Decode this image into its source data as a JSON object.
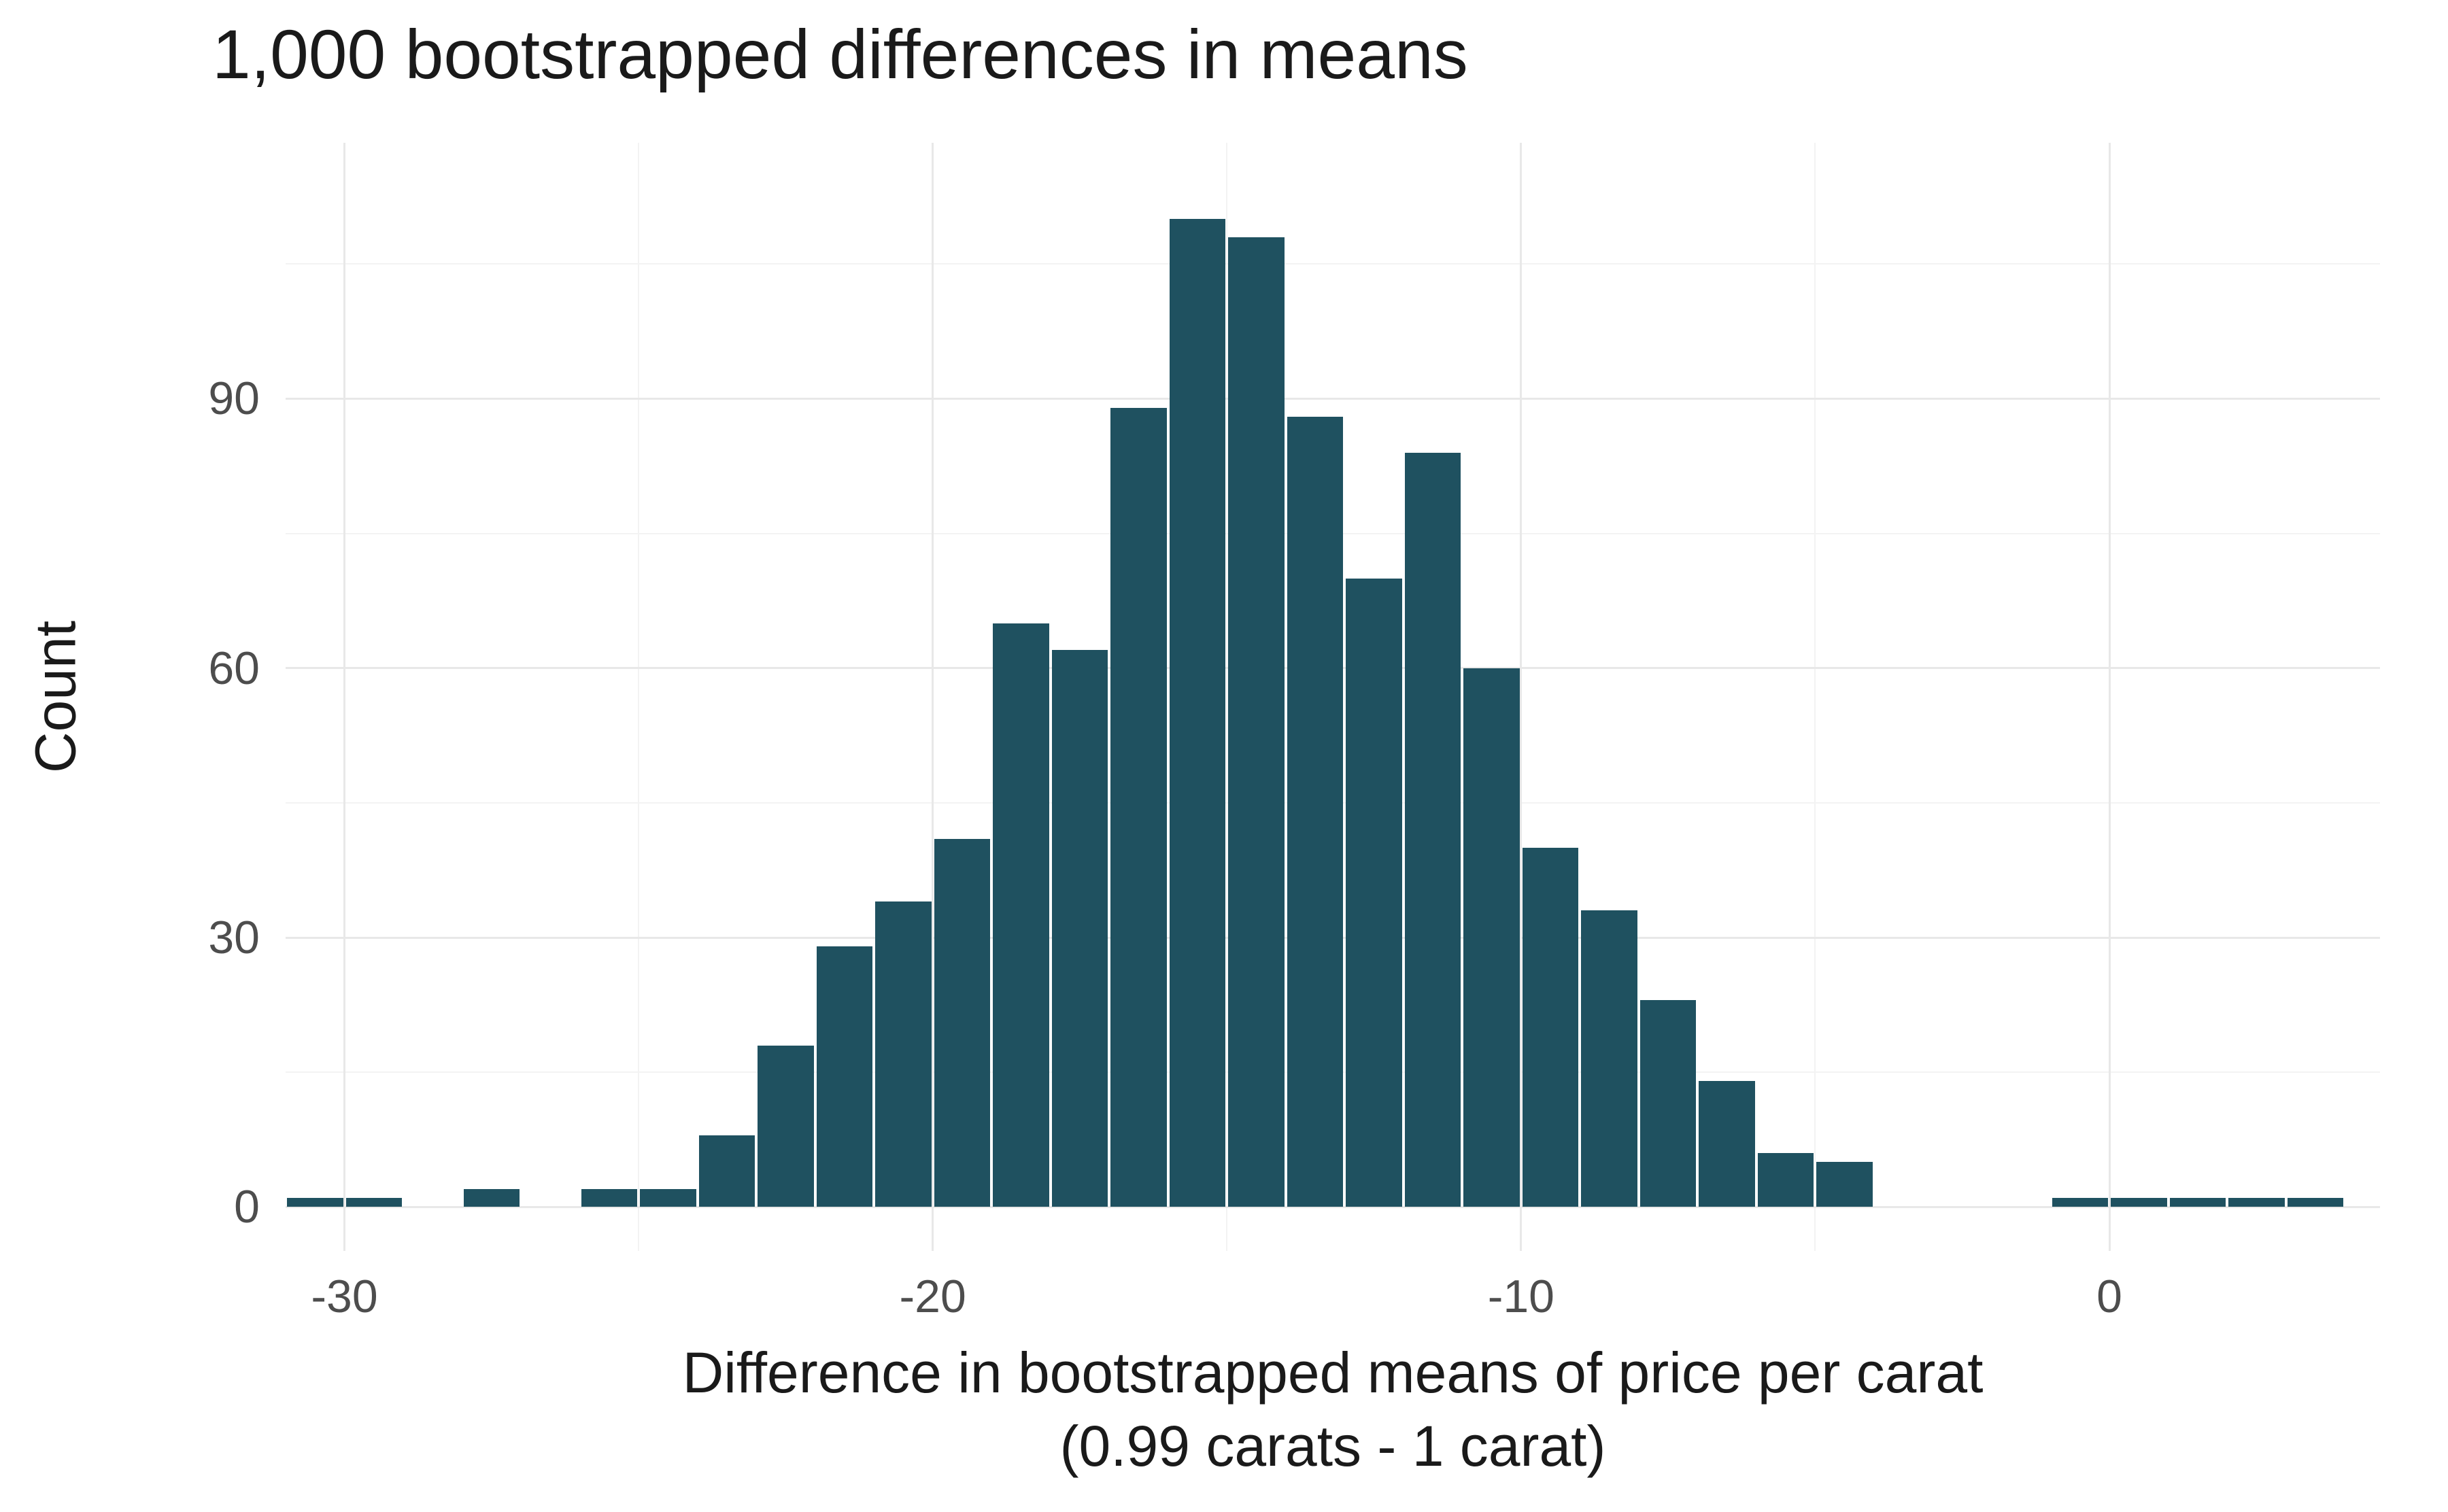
{
  "chart_data": {
    "type": "bar",
    "subtype": "histogram",
    "title": "1,000 bootstrapped differences in means",
    "xlabel_line1": "Difference in bootstrapped means of price per carat",
    "xlabel_line2": "(0.99 carats - 1 carat)",
    "ylabel": "Count",
    "total_samples": "1,000",
    "bar_color": "#1f5160",
    "grid_major_color": "#e8e8e8",
    "grid_minor_color": "#f3f3f3",
    "background_color": "#ffffff",
    "legend": "none",
    "grid": "on",
    "bin_width": 1,
    "xlim": [
      -31.0,
      4.6
    ],
    "ylim": [
      -4.9,
      118.5
    ],
    "x_ticks": [
      -30,
      -20,
      -10,
      0
    ],
    "x_minor_ticks": [
      -25,
      -15,
      -5
    ],
    "y_ticks": [
      0,
      30,
      60,
      90
    ],
    "y_minor_ticks": [
      15,
      45,
      75,
      105
    ],
    "bars": [
      {
        "x": -30.5,
        "count": 1
      },
      {
        "x": -29.5,
        "count": 1
      },
      {
        "x": -27.5,
        "count": 2
      },
      {
        "x": -25.5,
        "count": 2
      },
      {
        "x": -24.5,
        "count": 2
      },
      {
        "x": -23.5,
        "count": 8
      },
      {
        "x": -22.5,
        "count": 18
      },
      {
        "x": -21.5,
        "count": 29
      },
      {
        "x": -20.5,
        "count": 34
      },
      {
        "x": -19.5,
        "count": 41
      },
      {
        "x": -18.5,
        "count": 65
      },
      {
        "x": -17.5,
        "count": 62
      },
      {
        "x": -16.5,
        "count": 89
      },
      {
        "x": -15.5,
        "count": 110
      },
      {
        "x": -14.5,
        "count": 108
      },
      {
        "x": -13.5,
        "count": 88
      },
      {
        "x": -12.5,
        "count": 70
      },
      {
        "x": -11.5,
        "count": 84
      },
      {
        "x": -10.5,
        "count": 60
      },
      {
        "x": -9.5,
        "count": 40
      },
      {
        "x": -8.5,
        "count": 33
      },
      {
        "x": -7.5,
        "count": 23
      },
      {
        "x": -6.5,
        "count": 14
      },
      {
        "x": -5.5,
        "count": 6
      },
      {
        "x": -4.5,
        "count": 5
      },
      {
        "x": -0.5,
        "count": 1
      },
      {
        "x": 0.5,
        "count": 1
      },
      {
        "x": 1.5,
        "count": 1
      },
      {
        "x": 2.5,
        "count": 1
      },
      {
        "x": 3.5,
        "count": 1
      }
    ]
  }
}
